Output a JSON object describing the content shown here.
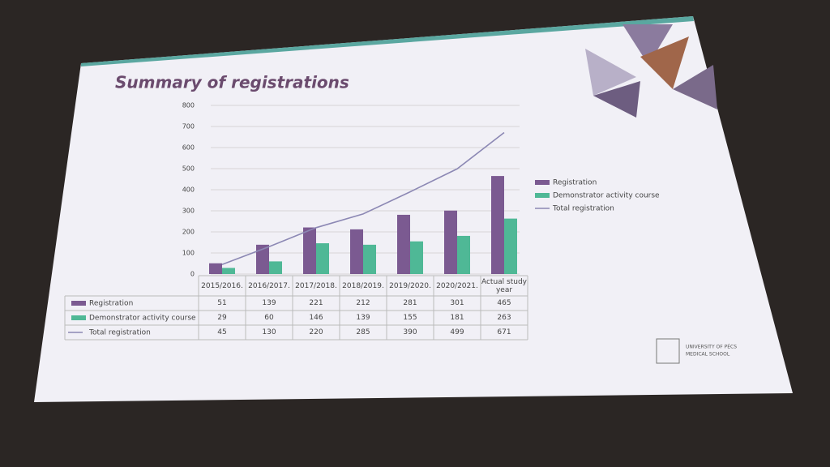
{
  "chart_data": {
    "type": "bar",
    "title": "Summary of registrations",
    "categories": [
      "2015/2016.",
      "2016/2017.",
      "2017/2018.",
      "2018/2019.",
      "2019/2020.",
      "2020/2021.",
      "Actual study year"
    ],
    "series": [
      {
        "name": "Registration",
        "type": "bar",
        "color": "#7b5a91",
        "values": [
          51,
          139,
          221,
          212,
          281,
          301,
          465
        ]
      },
      {
        "name": "Demonstrator activity course",
        "type": "bar",
        "color": "#4fb896",
        "values": [
          29,
          60,
          146,
          139,
          155,
          181,
          263
        ]
      },
      {
        "name": "Total registration",
        "type": "line",
        "color": "#8c88b4",
        "values": [
          45,
          130,
          220,
          285,
          390,
          499,
          671
        ]
      }
    ],
    "ylim": [
      0,
      800
    ],
    "yticks": [
      0,
      100,
      200,
      300,
      400,
      500,
      600,
      700,
      800
    ],
    "grid": true,
    "legend": "right"
  },
  "logo": {
    "line1": "UNIVERSITY OF PÉCS",
    "line2": "MEDICAL SCHOOL"
  }
}
